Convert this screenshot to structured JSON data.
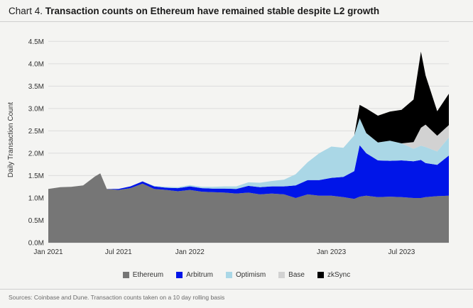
{
  "title": {
    "prefix": "Chart 4.",
    "text": "Transaction counts on Ethereum have remained stable despite L2 growth"
  },
  "source_note": "Sources: Coinbase and Dune. Transaction counts taken on a 10 day rolling basis",
  "chart_data": {
    "type": "area",
    "stacked": true,
    "title": "Transaction counts on Ethereum have remained stable despite L2 growth",
    "xlabel": "",
    "ylabel": "Daily Transaction Count",
    "ylim": [
      0,
      4.6
    ],
    "y_unit": "M",
    "yticks": [
      0,
      0.5,
      1.0,
      1.5,
      2.0,
      2.5,
      3.0,
      3.5,
      4.0,
      4.5
    ],
    "ytick_labels": [
      "0.0M",
      "0.5M",
      "1.0M",
      "1.5M",
      "2.0M",
      "2.5M",
      "3.0M",
      "3.5M",
      "4.0M",
      "4.5M"
    ],
    "xlim": [
      "2021-01-01",
      "2023-10-31"
    ],
    "xticks": [
      "2021-01-01",
      "2021-07-01",
      "2022-01-01",
      "2023-01-01",
      "2023-07-01"
    ],
    "xtick_labels": [
      "Jan 2021",
      "Jul 2021",
      "Jan 2022",
      "Jan 2023",
      "Jul 2023"
    ],
    "grid": true,
    "legend_position": "bottom",
    "x": [
      "2021-01-01",
      "2021-02-01",
      "2021-03-01",
      "2021-04-01",
      "2021-05-01",
      "2021-05-15",
      "2021-06-01",
      "2021-07-01",
      "2021-08-01",
      "2021-09-01",
      "2021-10-01",
      "2021-11-01",
      "2021-12-01",
      "2022-01-01",
      "2022-02-01",
      "2022-03-01",
      "2022-04-01",
      "2022-05-01",
      "2022-06-01",
      "2022-07-01",
      "2022-08-01",
      "2022-09-01",
      "2022-10-01",
      "2022-11-01",
      "2022-12-01",
      "2023-01-01",
      "2023-02-01",
      "2023-03-01",
      "2023-03-15",
      "2023-04-01",
      "2023-05-01",
      "2023-06-01",
      "2023-07-01",
      "2023-08-01",
      "2023-08-20",
      "2023-09-01",
      "2023-10-01",
      "2023-10-31"
    ],
    "series": [
      {
        "name": "Ethereum",
        "color": "#767676",
        "values": [
          1.2,
          1.24,
          1.25,
          1.28,
          1.48,
          1.55,
          1.2,
          1.18,
          1.22,
          1.32,
          1.2,
          1.18,
          1.15,
          1.18,
          1.14,
          1.13,
          1.12,
          1.1,
          1.12,
          1.08,
          1.1,
          1.08,
          1.0,
          1.08,
          1.05,
          1.05,
          1.02,
          0.98,
          1.03,
          1.05,
          1.02,
          1.03,
          1.02,
          1.0,
          1.0,
          1.02,
          1.04,
          1.05
        ]
      },
      {
        "name": "Arbitrum",
        "color": "#0015e8",
        "values": [
          0,
          0,
          0,
          0,
          0,
          0,
          0,
          0.02,
          0.04,
          0.05,
          0.06,
          0.05,
          0.07,
          0.08,
          0.08,
          0.08,
          0.09,
          0.1,
          0.15,
          0.16,
          0.16,
          0.18,
          0.28,
          0.32,
          0.35,
          0.4,
          0.45,
          0.62,
          1.15,
          0.95,
          0.82,
          0.8,
          0.82,
          0.82,
          0.85,
          0.76,
          0.7,
          0.9
        ]
      },
      {
        "name": "Optimism",
        "color": "#aad7e6",
        "values": [
          0,
          0,
          0,
          0,
          0,
          0,
          0,
          0,
          0,
          0,
          0.01,
          0.02,
          0.02,
          0.03,
          0.03,
          0.04,
          0.05,
          0.06,
          0.08,
          0.1,
          0.12,
          0.15,
          0.25,
          0.4,
          0.6,
          0.7,
          0.65,
          0.8,
          0.6,
          0.45,
          0.4,
          0.45,
          0.38,
          0.28,
          0.32,
          0.36,
          0.3,
          0.4
        ]
      },
      {
        "name": "Base",
        "color": "#d2d2d2",
        "values": [
          0,
          0,
          0,
          0,
          0,
          0,
          0,
          0,
          0,
          0,
          0,
          0,
          0,
          0,
          0,
          0,
          0,
          0,
          0,
          0,
          0,
          0,
          0,
          0,
          0,
          0,
          0,
          0,
          0,
          0,
          0,
          0,
          0,
          0.15,
          0.4,
          0.5,
          0.35,
          0.28
        ]
      },
      {
        "name": "zkSync",
        "color": "#000000",
        "values": [
          0,
          0,
          0,
          0,
          0,
          0,
          0,
          0,
          0,
          0,
          0,
          0,
          0,
          0,
          0,
          0,
          0,
          0,
          0,
          0,
          0,
          0,
          0,
          0,
          0,
          0,
          0,
          0,
          0.3,
          0.55,
          0.6,
          0.65,
          0.75,
          0.95,
          1.7,
          1.1,
          0.55,
          0.7
        ]
      }
    ]
  }
}
